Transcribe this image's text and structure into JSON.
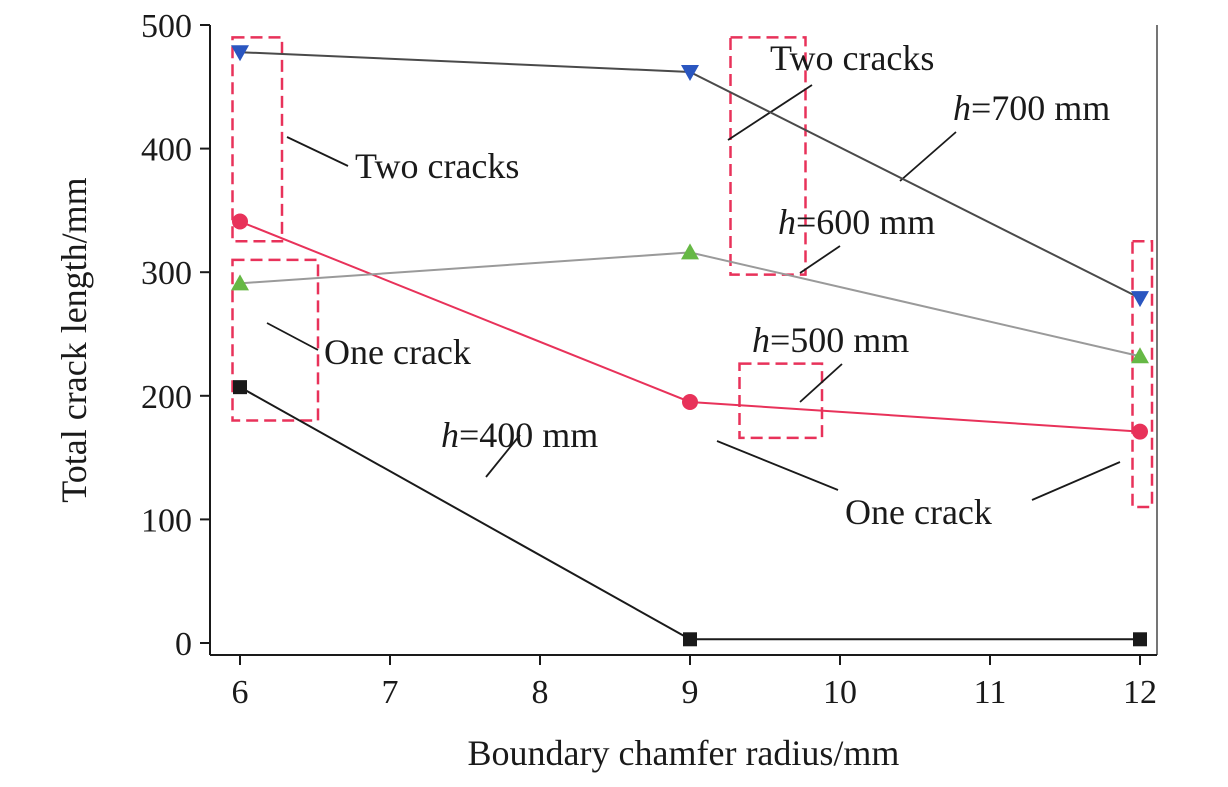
{
  "chart_data": {
    "type": "line",
    "title": "",
    "xlabel": "Boundary chamfer radius/mm",
    "ylabel": "Total crack length/mm",
    "xlim": [
      5.8,
      12.1
    ],
    "ylim": [
      -10,
      500
    ],
    "xticks": [
      6,
      7,
      8,
      9,
      10,
      11,
      12
    ],
    "yticks": [
      0,
      100,
      200,
      300,
      400,
      500
    ],
    "grid": false,
    "legend": "none",
    "x": [
      6,
      9,
      12
    ],
    "series": [
      {
        "name": "h=400 mm",
        "h_prefix": "h",
        "h_value": "=400 mm",
        "values": [
          207,
          3,
          3
        ],
        "color": "#1a1a1a",
        "marker": "square"
      },
      {
        "name": "h=500 mm",
        "h_prefix": "h",
        "h_value": "=500 mm",
        "values": [
          341,
          195,
          171
        ],
        "color": "#e8325a",
        "marker": "circle"
      },
      {
        "name": "h=600 mm",
        "h_prefix": "h",
        "h_value": "=600 mm",
        "values": [
          291,
          316,
          232
        ],
        "color": "#66b845",
        "marker": "triangle-up"
      },
      {
        "name": "h=700 mm",
        "h_prefix": "h",
        "h_value": "=700 mm",
        "values": [
          478,
          462,
          279
        ],
        "color": "#2a56c0",
        "marker": "triangle-down"
      }
    ],
    "annotations": [
      {
        "text": "Two cracks",
        "x": 6.8,
        "y": 382
      },
      {
        "text": "One crack",
        "x": 6.55,
        "y": 232
      },
      {
        "text": "Two cracks",
        "x": 10.6,
        "y": 466
      },
      {
        "text": "One crack",
        "x": 10.9,
        "y": 102
      }
    ],
    "highlight_boxes": [
      {
        "x": [
          5.95,
          6.28
        ],
        "y": [
          325,
          490
        ]
      },
      {
        "x": [
          5.95,
          6.52
        ],
        "y": [
          180,
          310
        ]
      },
      {
        "x": [
          9.27,
          9.77
        ],
        "y": [
          298,
          490
        ]
      },
      {
        "x": [
          9.33,
          9.88
        ],
        "y": [
          166,
          226
        ]
      },
      {
        "x": [
          11.95,
          12.08
        ],
        "y": [
          110,
          325
        ]
      }
    ],
    "colors": {
      "line_400": "#1a1a1a",
      "line_500": "#e8325a",
      "line_600": "#9a9a9a",
      "line_700": "#4a4a4a",
      "box": "#e8325a"
    }
  }
}
